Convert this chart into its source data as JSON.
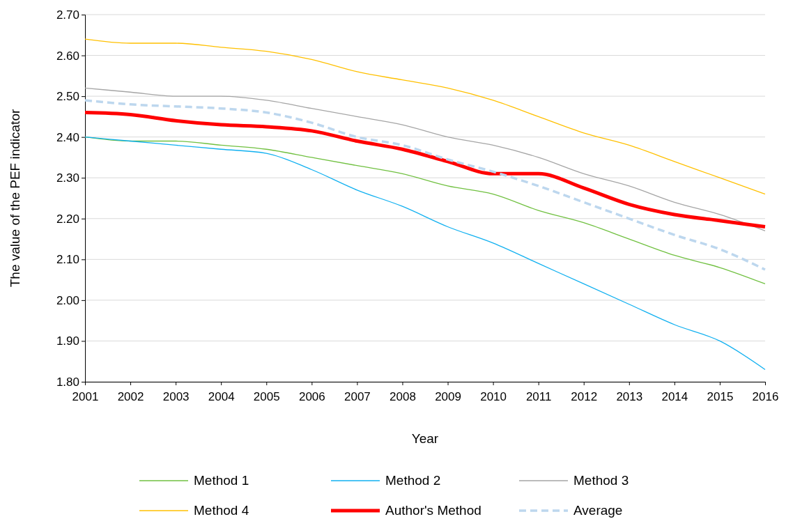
{
  "chart_data": {
    "type": "line",
    "xlabel": "Year",
    "ylabel": "The value of the PEF indicator",
    "x": [
      2001,
      2002,
      2003,
      2004,
      2005,
      2006,
      2007,
      2008,
      2009,
      2010,
      2011,
      2012,
      2013,
      2014,
      2015,
      2016
    ],
    "xlim": [
      2001,
      2016
    ],
    "xticks": [
      2001,
      2002,
      2003,
      2004,
      2005,
      2006,
      2007,
      2008,
      2009,
      2010,
      2011,
      2012,
      2013,
      2014,
      2015,
      2016
    ],
    "ylim": [
      1.8,
      2.7
    ],
    "yticks": [
      {
        "value": 1.8,
        "label": "1.80"
      },
      {
        "value": 1.9,
        "label": "1.90"
      },
      {
        "value": 2.0,
        "label": "2.00"
      },
      {
        "value": 2.1,
        "label": "2.10"
      },
      {
        "value": 2.2,
        "label": "2.20"
      },
      {
        "value": 2.3,
        "label": "2.30"
      },
      {
        "value": 2.4,
        "label": "2.40"
      },
      {
        "value": 2.5,
        "label": "2.50"
      },
      {
        "value": 2.6,
        "label": "2.60"
      },
      {
        "value": 2.7,
        "label": "2.70"
      }
    ],
    "grid": "y",
    "legend": "bottom",
    "series": [
      {
        "name": "Method 1",
        "color": "#70c040",
        "values": [
          2.4,
          2.39,
          2.39,
          2.38,
          2.37,
          2.35,
          2.33,
          2.31,
          2.28,
          2.26,
          2.22,
          2.19,
          2.15,
          2.11,
          2.08,
          2.04
        ]
      },
      {
        "name": "Method 2",
        "color": "#10b0f0",
        "values": [
          2.4,
          2.39,
          2.38,
          2.37,
          2.36,
          2.32,
          2.27,
          2.23,
          2.18,
          2.14,
          2.09,
          2.04,
          1.99,
          1.94,
          1.9,
          1.83
        ]
      },
      {
        "name": "Method 3",
        "color": "#a5a5a5",
        "values": [
          2.52,
          2.51,
          2.5,
          2.5,
          2.49,
          2.47,
          2.45,
          2.43,
          2.4,
          2.38,
          2.35,
          2.31,
          2.28,
          2.24,
          2.21,
          2.17
        ]
      },
      {
        "name": "Method 4",
        "color": "#ffc000",
        "values": [
          2.64,
          2.63,
          2.63,
          2.62,
          2.61,
          2.59,
          2.56,
          2.54,
          2.52,
          2.49,
          2.45,
          2.41,
          2.38,
          2.34,
          2.3,
          2.26
        ]
      },
      {
        "name": "Author's Method",
        "color": "#ff0000",
        "values": [
          2.46,
          2.455,
          2.44,
          2.43,
          2.425,
          2.415,
          2.39,
          2.37,
          2.34,
          2.31,
          2.31,
          2.275,
          2.235,
          2.21,
          2.195,
          2.18
        ]
      },
      {
        "name": "Average",
        "color": "#bdd7ee",
        "line_style": "dashed",
        "values": [
          2.49,
          2.48,
          2.475,
          2.47,
          2.46,
          2.435,
          2.4,
          2.38,
          2.345,
          2.315,
          2.28,
          2.24,
          2.2,
          2.16,
          2.125,
          2.075
        ]
      }
    ]
  }
}
